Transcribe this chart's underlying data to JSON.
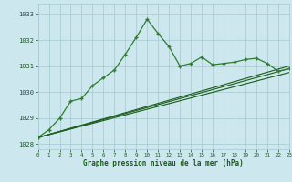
{
  "title": "Graphe pression niveau de la mer (hPa)",
  "background_color": "#cce8ee",
  "grid_color": "#aacdd6",
  "line_color_dark": "#1a5c1a",
  "line_color_mid": "#2e7d2e",
  "xlim": [
    0,
    23
  ],
  "ylim": [
    1027.8,
    1033.4
  ],
  "yticks": [
    1028,
    1029,
    1030,
    1031,
    1032,
    1033
  ],
  "xticks": [
    0,
    1,
    2,
    3,
    4,
    5,
    6,
    7,
    8,
    9,
    10,
    11,
    12,
    13,
    14,
    15,
    16,
    17,
    18,
    19,
    20,
    21,
    22,
    23
  ],
  "series_jagged": {
    "x": [
      0,
      1,
      2,
      3,
      4,
      5,
      6,
      7,
      8,
      9,
      10,
      11,
      12,
      13,
      14,
      15,
      16,
      17,
      18,
      19,
      20,
      21,
      22,
      23
    ],
    "y": [
      1028.25,
      1028.55,
      1029.0,
      1029.65,
      1029.75,
      1030.25,
      1030.55,
      1030.85,
      1031.45,
      1032.1,
      1032.8,
      1032.25,
      1031.75,
      1031.0,
      1031.1,
      1031.35,
      1031.05,
      1031.1,
      1031.15,
      1031.25,
      1031.3,
      1031.1,
      1030.8,
      1030.9
    ]
  },
  "series_linear1": {
    "x": [
      0,
      23
    ],
    "y": [
      1028.25,
      1030.75
    ]
  },
  "series_linear2": {
    "x": [
      0,
      23
    ],
    "y": [
      1028.25,
      1030.9
    ]
  },
  "series_linear3": {
    "x": [
      0,
      23
    ],
    "y": [
      1028.25,
      1031.0
    ]
  }
}
